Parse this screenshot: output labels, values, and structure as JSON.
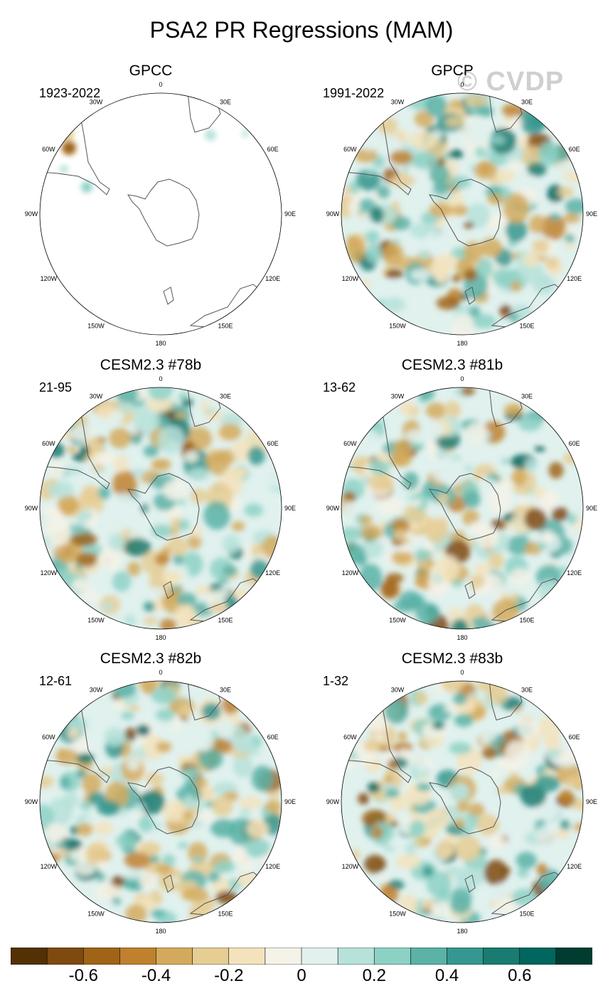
{
  "title": "PSA2 PR Regressions (MAM)",
  "watermark": "© CVDP",
  "longitude_labels": [
    "0",
    "30E",
    "60E",
    "90E",
    "120E",
    "150E",
    "180",
    "150W",
    "120W",
    "90W",
    "60W",
    "30W"
  ],
  "panels": [
    {
      "title": "GPCC",
      "period": "1923-2022",
      "ocean_data": false
    },
    {
      "title": "GPCP",
      "period": "1991-2022",
      "ocean_data": true
    },
    {
      "title": "CESM2.3 #78b",
      "period": "21-95",
      "ocean_data": true
    },
    {
      "title": "CESM2.3 #81b",
      "period": "13-62",
      "ocean_data": true
    },
    {
      "title": "CESM2.3 #82b",
      "period": "12-61",
      "ocean_data": true
    },
    {
      "title": "CESM2.3 #83b",
      "period": "1-32",
      "ocean_data": true
    }
  ],
  "colorbar": {
    "colors": [
      "#543005",
      "#7f4a0f",
      "#a06418",
      "#bf812d",
      "#d3aa5d",
      "#e6cd94",
      "#f3e3bd",
      "#f5f2e8",
      "#e0f1ee",
      "#b7e2da",
      "#8dd1c5",
      "#5bb2a7",
      "#35978f",
      "#1a7b71",
      "#01665e",
      "#003c30"
    ],
    "labels": [
      "-0.6",
      "-0.4",
      "-0.2",
      "0",
      "0.2",
      "0.4",
      "0.6"
    ]
  }
}
